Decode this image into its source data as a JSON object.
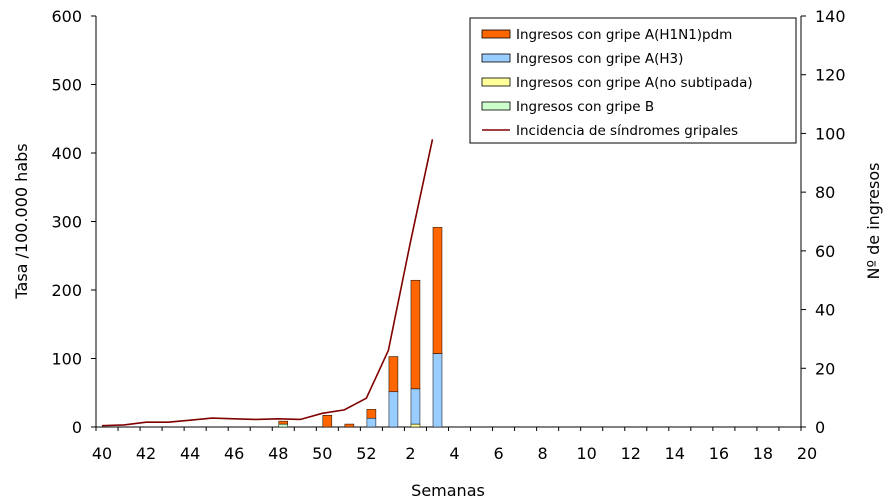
{
  "chart_data": {
    "type": "bar",
    "stacked": true,
    "xlabel": "Semanas",
    "ylabel_left": "Tasa /100.000 habs",
    "ylabel_right": "Nº de ingresos",
    "ylim_left": [
      0,
      600
    ],
    "ylim_right": [
      0,
      140
    ],
    "yticks_left": [
      "0",
      "100",
      "200",
      "300",
      "400",
      "500",
      "600"
    ],
    "yticks_right": [
      "0",
      "20",
      "40",
      "60",
      "80",
      "100",
      "120",
      "140"
    ],
    "categories": [
      "40",
      "41",
      "42",
      "43",
      "44",
      "45",
      "46",
      "47",
      "48",
      "49",
      "50",
      "51",
      "52",
      "1",
      "2",
      "3",
      "4",
      "5",
      "6",
      "7",
      "8",
      "9",
      "10",
      "11",
      "12",
      "13",
      "14",
      "15",
      "16",
      "17",
      "18",
      "19",
      "20"
    ],
    "xtick_labels": [
      "40",
      "42",
      "44",
      "46",
      "48",
      "50",
      "52",
      "2",
      "4",
      "6",
      "8",
      "10",
      "12",
      "14",
      "16",
      "18",
      "20"
    ],
    "legend_position": "top-right",
    "series": [
      {
        "name": "Ingresos con gripe A(H1N1)pdm",
        "axis": "right",
        "color": "#ff6600",
        "values": [
          0,
          0,
          0,
          0,
          0,
          0,
          0,
          0,
          1,
          0,
          4,
          1,
          3,
          12,
          37,
          43,
          0,
          0,
          0,
          0,
          0,
          0,
          0,
          0,
          0,
          0,
          0,
          0,
          0,
          0,
          0,
          0,
          0
        ]
      },
      {
        "name": "Ingresos con gripe A(H3)",
        "axis": "right",
        "color": "#99ccff",
        "values": [
          0,
          0,
          0,
          0,
          0,
          0,
          0,
          0,
          0,
          0,
          0,
          0,
          3,
          12,
          12,
          25,
          0,
          0,
          0,
          0,
          0,
          0,
          0,
          0,
          0,
          0,
          0,
          0,
          0,
          0,
          0,
          0,
          0
        ]
      },
      {
        "name": "Ingresos con gripe A(no subtipada)",
        "axis": "right",
        "color": "#ffff99",
        "values": [
          0,
          0,
          0,
          0,
          0,
          0,
          0,
          0,
          0,
          0,
          0,
          0,
          0,
          0,
          1,
          0,
          0,
          0,
          0,
          0,
          0,
          0,
          0,
          0,
          0,
          0,
          0,
          0,
          0,
          0,
          0,
          0,
          0
        ]
      },
      {
        "name": "Ingresos con gripe B",
        "axis": "right",
        "color": "#ccffcc",
        "values": [
          0,
          0,
          0,
          0,
          0,
          0,
          0,
          0,
          1,
          0,
          0,
          0,
          0,
          0,
          0,
          0,
          0,
          0,
          0,
          0,
          0,
          0,
          0,
          0,
          0,
          0,
          0,
          0,
          0,
          0,
          0,
          0,
          0
        ]
      },
      {
        "name": "Incidencia de síndromes gripales",
        "axis": "left",
        "type": "line",
        "color": "#800000",
        "values": [
          2,
          3,
          7,
          7,
          10,
          13,
          12,
          11,
          12,
          11,
          20,
          25,
          42,
          112,
          270,
          420,
          null,
          null,
          null,
          null,
          null,
          null,
          null,
          null,
          null,
          null,
          null,
          null,
          null,
          null,
          null,
          null,
          null
        ]
      }
    ]
  }
}
